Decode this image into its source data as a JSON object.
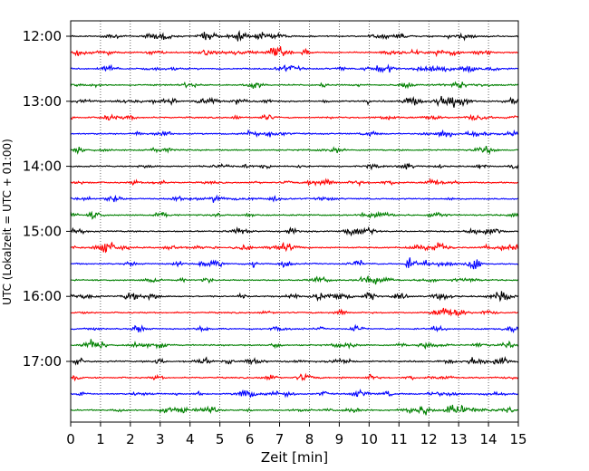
{
  "chart_data": {
    "type": "line",
    "title": "",
    "xlabel": "Zeit  [min]",
    "ylabel": "UTC (Lokalzeit = UTC + 01:00)",
    "xlim": [
      0,
      15
    ],
    "x_ticks": [
      "0",
      "1",
      "2",
      "3",
      "4",
      "5",
      "6",
      "7",
      "8",
      "9",
      "10",
      "11",
      "12",
      "13",
      "14",
      "15"
    ],
    "y_ticks": [
      "12:00",
      "13:00",
      "14:00",
      "15:00",
      "16:00",
      "17:00"
    ],
    "row_interval_min": 15,
    "row_count": 24,
    "rows": [
      "12:00",
      "12:15",
      "12:30",
      "12:45",
      "13:00",
      "13:15",
      "13:30",
      "13:45",
      "14:00",
      "14:15",
      "14:30",
      "14:45",
      "15:00",
      "15:15",
      "15:30",
      "15:45",
      "16:00",
      "16:15",
      "16:30",
      "16:45",
      "17:00",
      "17:15",
      "17:30",
      "17:45"
    ],
    "colors": [
      "#000000",
      "#ff0000",
      "#0000ff",
      "#008000"
    ],
    "grid": {
      "vertical": true,
      "style": "dotted"
    },
    "legend": "none"
  }
}
